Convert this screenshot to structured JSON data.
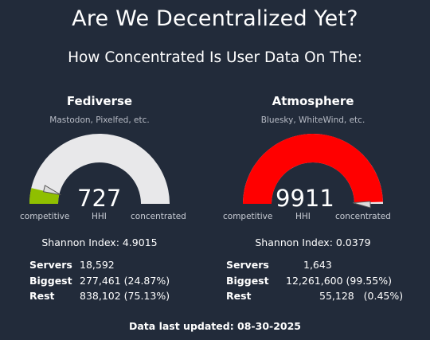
{
  "header": {
    "title": "Are We Decentralized Yet?",
    "subtitle": "How Concentrated Is User Data On The:"
  },
  "colors": {
    "background": "#222b3a",
    "gauge_track": "#e8e8ea",
    "fediverse_fill": "#8fbf00",
    "atmosphere_fill": "#ff0000"
  },
  "fediverse": {
    "name": "Fediverse",
    "examples": "Mastodon, Pixelfed, etc.",
    "hhi": "727",
    "hhi_fraction": 0.0727,
    "hhi_label": "HHI",
    "min_label": "competitive",
    "max_label": "concentrated",
    "shannon": "Shannon Index: 4.9015",
    "stats": [
      {
        "label": "Servers",
        "value": "18,592"
      },
      {
        "label": "Biggest",
        "value": "277,461 (24.87%)"
      },
      {
        "label": "Rest",
        "value": "838,102 (75.13%)"
      }
    ]
  },
  "atmosphere": {
    "name": "Atmosphere",
    "examples": "Bluesky, WhiteWind, etc.",
    "hhi": "9911",
    "hhi_fraction": 0.9911,
    "hhi_label": "HHI",
    "min_label": "competitive",
    "max_label": "concentrated",
    "shannon": "Shannon Index: 0.0379",
    "stats": [
      {
        "label": "Servers",
        "value": "1,643"
      },
      {
        "label": "Biggest",
        "value": "12,261,600 (99.55%)"
      },
      {
        "label": "Rest",
        "value": "55,128   (0.45%)"
      }
    ]
  },
  "footer": {
    "updated": "Data last updated: 08-30-2025"
  }
}
